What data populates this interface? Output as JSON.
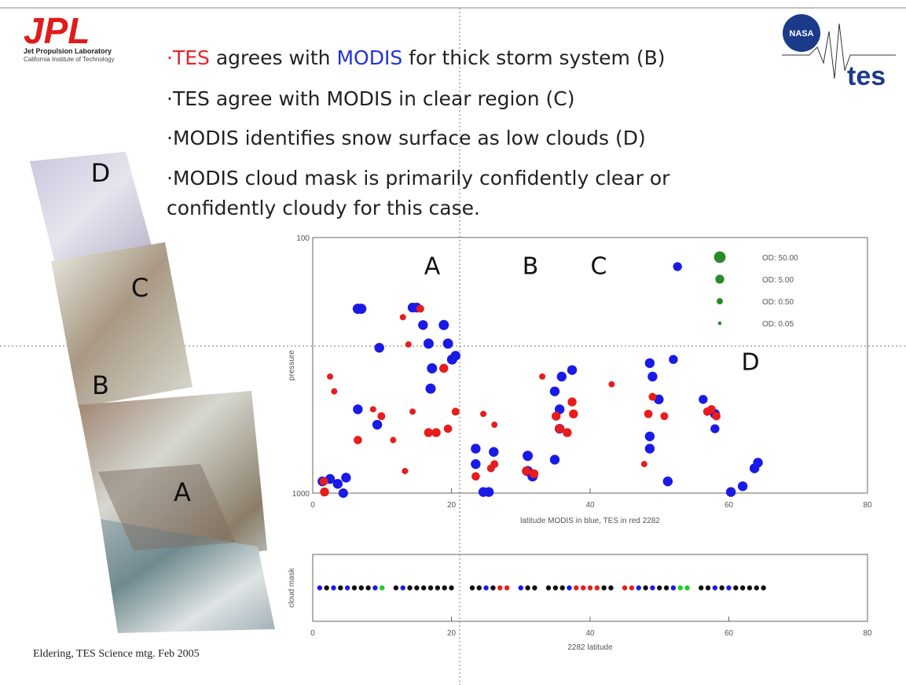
{
  "logo": {
    "jpl": "JPL",
    "line1": "Jet Propulsion Laboratory",
    "line2": "California Institute of Technology",
    "nasa": "NASA",
    "tes": "tes"
  },
  "bullets": [
    [
      {
        "text": "·TES",
        "color": "#e8222a"
      },
      {
        "text": " agrees with "
      },
      {
        "text": "MODIS",
        "color": "#2233dd"
      },
      {
        "text": " for thick storm system (B)"
      }
    ],
    [
      {
        "text": "·TES agree with MODIS in clear region (C)"
      }
    ],
    [
      {
        "text": "·MODIS identifies snow surface as low clouds (D)"
      }
    ],
    [
      {
        "text": "·MODIS cloud mask is primarily confidently clear or confidently cloudy for this case."
      }
    ]
  ],
  "image_labels": [
    "D",
    "C",
    "B",
    "A"
  ],
  "footer": "Eldering, TES Science mtg. Feb 2005",
  "chart_data": [
    {
      "type": "scatter",
      "xlabel": "latitude MODIS in blue, TES in red 2282",
      "ylabel": "pressure",
      "xlim": [
        0,
        80
      ],
      "xticks": [
        0,
        20,
        40,
        60,
        80
      ],
      "ylim": [
        1000,
        100
      ],
      "yticks": [
        100,
        1000
      ],
      "ylog": true,
      "annotations": [
        "A",
        "B",
        "C",
        "D"
      ],
      "size_legend_color": "#2a8a2a",
      "size_legend": [
        {
          "value": 50,
          "label": "OD:  50.00"
        },
        {
          "value": 5,
          "label": "OD:  5.00"
        },
        {
          "value": 0.5,
          "label": "OD:  0.50"
        },
        {
          "value": 0.05,
          "label": "OD:  0.05"
        }
      ],
      "series": [
        {
          "color": "#1a1ae6",
          "x": [
            1.4,
            2.5,
            3.6,
            4.8,
            4.4,
            6.5,
            7.0,
            6.5,
            9.6,
            9.3,
            14.4,
            15.0,
            15.9,
            16.7,
            17.2,
            17.0,
            18.9,
            19.5,
            20.1,
            20.6,
            23.5,
            23.5,
            24.6,
            25.4,
            26.1,
            31.0,
            31.0,
            31.7,
            34.9,
            34.9,
            35.9,
            37.4,
            35.6,
            35.6,
            48.6,
            49.0,
            48.6,
            48.6,
            49.9,
            51.2,
            52.0,
            52.6,
            56.3,
            58.0,
            60.3,
            62.0,
            63.7,
            64.2,
            58.0
          ],
          "values": [
            900,
            880,
            920,
            870,
            1000,
            190,
            190,
            470,
            270,
            540,
            188,
            188,
            220,
            260,
            325,
            390,
            220,
            260,
            300,
            290,
            670,
            770,
            990,
            990,
            690,
            715,
            820,
            860,
            740,
            400,
            350,
            330,
            470,
            560,
            310,
            350,
            600,
            670,
            430,
            900,
            300,
            130,
            430,
            560,
            990,
            940,
            800,
            760,
            490
          ],
          "sizes": [
            10,
            10,
            10,
            10,
            8,
            15,
            15,
            10,
            10,
            10,
            10,
            10,
            10,
            15,
            15,
            15,
            15,
            15,
            15,
            10,
            10,
            10,
            10,
            10,
            10,
            15,
            15,
            15,
            10,
            10,
            10,
            10,
            10,
            10,
            10,
            10,
            10,
            10,
            10,
            10,
            5,
            5,
            5,
            5,
            10,
            10,
            10,
            10,
            10
          ]
        },
        {
          "color": "#e81c1c",
          "x": [
            1.7,
            1.6,
            2.5,
            3.1,
            6.5,
            8.7,
            9.9,
            13.0,
            13.8,
            14.4,
            15.5,
            16.7,
            17.8,
            18.9,
            19.5,
            20.6,
            23.5,
            25.7,
            26.2,
            30.8,
            31.9,
            35.1,
            35.6,
            36.7,
            37.4,
            37.6,
            48.4,
            49.0,
            50.7,
            56.9,
            57.5,
            58.2,
            11.6,
            13.3,
            24.6,
            26.2,
            33.1,
            43.1,
            47.8
          ],
          "values": [
            990,
            900,
            350,
            400,
            620,
            470,
            500,
            205,
            262,
            480,
            190,
            580,
            580,
            325,
            560,
            480,
            860,
            800,
            770,
            820,
            840,
            500,
            560,
            580,
            440,
            490,
            490,
            420,
            500,
            480,
            470,
            500,
            620,
            820,
            490,
            540,
            350,
            375,
            770
          ],
          "sizes": [
            5,
            3,
            0.5,
            0.5,
            3,
            0.5,
            2,
            0.5,
            0.5,
            0.5,
            2,
            5,
            5,
            5,
            3,
            2,
            3,
            2,
            2,
            5,
            5,
            5,
            5,
            5,
            5,
            5,
            3,
            2,
            2,
            3,
            3,
            3,
            0.5,
            0.5,
            0.5,
            0.5,
            0.5,
            0.5,
            0.5
          ]
        }
      ]
    },
    {
      "type": "strip",
      "xlabel": "2282  latitude",
      "ylabel": "cloud mask",
      "xlim": [
        0,
        80
      ],
      "xticks": [
        0,
        20,
        40,
        60,
        80
      ],
      "ylim": [
        0,
        2
      ],
      "series": [
        {
          "color": "#111111",
          "x": [
            2,
            4,
            6,
            7,
            8,
            12,
            14,
            15,
            16,
            17,
            18,
            19,
            20,
            23,
            24,
            26,
            31,
            32,
            34,
            35,
            36,
            42,
            43,
            48,
            50,
            51,
            56,
            57,
            59,
            61,
            62,
            63,
            64,
            65
          ],
          "values": [
            1,
            1,
            1,
            1,
            1,
            1,
            1,
            1,
            1,
            1,
            1,
            1,
            1,
            1,
            1,
            1,
            1,
            1,
            1,
            1,
            1,
            1,
            1,
            1,
            1,
            1,
            1,
            1,
            1,
            1,
            1,
            1,
            1,
            1
          ]
        },
        {
          "color": "#e81c1c",
          "x": [
            27,
            28,
            38,
            39,
            40,
            41,
            45,
            46
          ],
          "values": [
            1,
            1,
            1,
            1,
            1,
            1,
            1,
            1
          ]
        },
        {
          "color": "#1a1ae6",
          "x": [
            1,
            3,
            5,
            9,
            13,
            25,
            30,
            37,
            47,
            49,
            52,
            58,
            60
          ],
          "values": [
            1,
            1,
            1,
            1,
            1,
            1,
            1,
            1,
            1,
            1,
            1,
            1,
            1
          ]
        },
        {
          "color": "#22cc22",
          "x": [
            10,
            53,
            54
          ],
          "values": [
            1,
            1,
            1
          ]
        }
      ]
    }
  ]
}
